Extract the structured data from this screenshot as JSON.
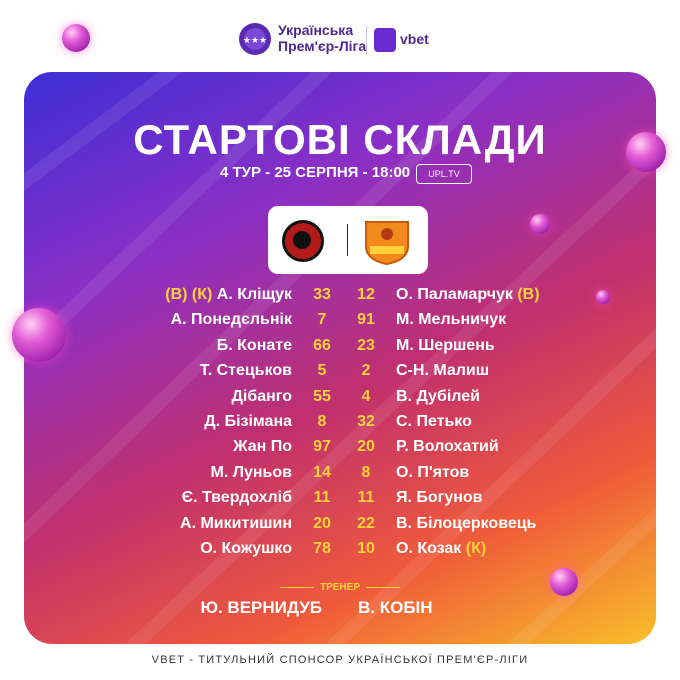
{
  "header": {
    "league_line1": "Українська",
    "league_line2": "Прем'єр-Ліга",
    "sponsor": "vbet"
  },
  "title": "СТАРТОВІ СКЛАДИ",
  "subtitle": "4 ТУР - 25 СЕРПНЯ - 18:00",
  "broadcaster": "UPL.TV",
  "teams": {
    "home_logo": "kryvbas-crest-icon",
    "away_logo": "inhulets-crest-icon"
  },
  "lineup": [
    {
      "home_tag": "(В) (К) ",
      "home": "А. Кліщук",
      "home_num": "33",
      "away_num": "12",
      "away": "О. Паламарчук",
      "away_tag": " (В)"
    },
    {
      "home_tag": "",
      "home": "А. Понедєльнік",
      "home_num": "7",
      "away_num": "91",
      "away": "М. Мельничук",
      "away_tag": ""
    },
    {
      "home_tag": "",
      "home": "Б. Конате",
      "home_num": "66",
      "away_num": "23",
      "away": "М. Шершень",
      "away_tag": ""
    },
    {
      "home_tag": "",
      "home": "Т. Стецьков",
      "home_num": "5",
      "away_num": "2",
      "away": "С-Н. Малиш",
      "away_tag": ""
    },
    {
      "home_tag": "",
      "home": "Дібанго",
      "home_num": "55",
      "away_num": "4",
      "away": "В. Дубілей",
      "away_tag": ""
    },
    {
      "home_tag": "",
      "home": "Д. Бізімана",
      "home_num": "8",
      "away_num": "32",
      "away": "С. Петько",
      "away_tag": ""
    },
    {
      "home_tag": "",
      "home": "Жан По",
      "home_num": "97",
      "away_num": "20",
      "away": "Р. Волохатий",
      "away_tag": ""
    },
    {
      "home_tag": "",
      "home": "М. Луньов",
      "home_num": "14",
      "away_num": "8",
      "away": "О. П'ятов",
      "away_tag": ""
    },
    {
      "home_tag": "",
      "home": "Є. Твердохліб",
      "home_num": "11",
      "away_num": "11",
      "away": "Я. Богунов",
      "away_tag": ""
    },
    {
      "home_tag": "",
      "home": "А. Микитишин",
      "home_num": "20",
      "away_num": "22",
      "away": "В. Білоцерковець",
      "away_tag": ""
    },
    {
      "home_tag": "",
      "home": "О. Кожушко",
      "home_num": "78",
      "away_num": "10",
      "away": "О. Козак",
      "away_tag": " (К)"
    }
  ],
  "coach": {
    "label": "ТРЕНЕР",
    "home": "Ю. ВЕРНИДУБ",
    "away": "В. КОБІН"
  },
  "footer": "VBET - ТИТУЛЬНИЙ СПОНСОР УКРАЇНСЬКОЇ ПРЕМ'ЄР-ЛІГИ",
  "colors": {
    "accent_yellow": "#ffd23a",
    "gradient_start": "#3d2fd6",
    "gradient_end": "#f8bf2a",
    "brand_purple": "#4a2a8c"
  }
}
